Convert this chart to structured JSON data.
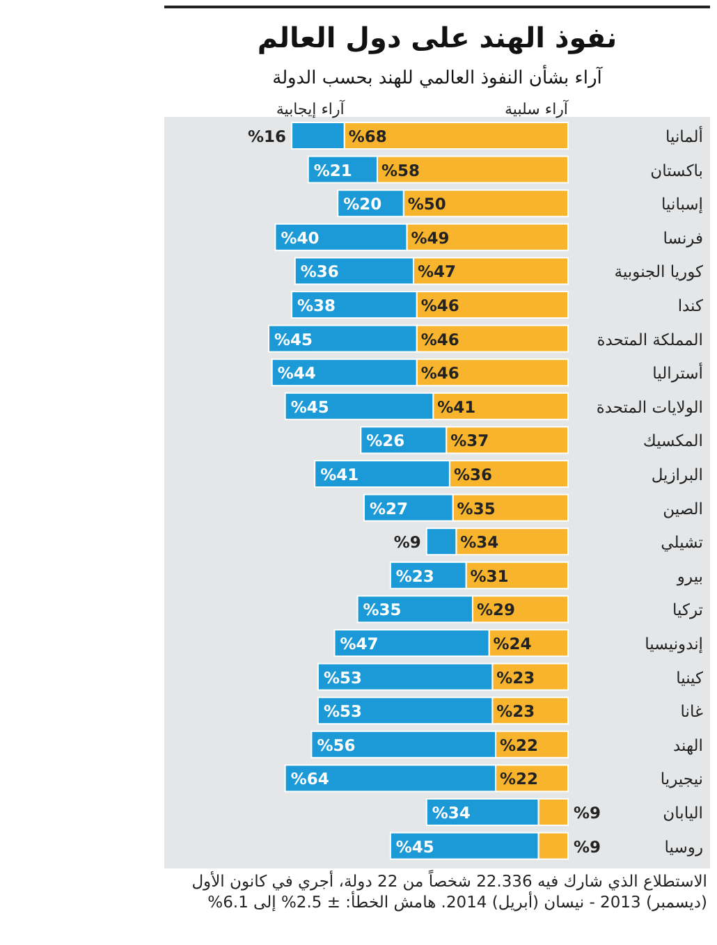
{
  "chart_data": {
    "type": "bar",
    "orientation": "horizontal",
    "stacked": true,
    "title": "نفوذ الهند على دول العالم",
    "subtitle": "آراء بشأن النفوذ العالمي للهند بحسب الدولة",
    "categories": [
      "ألمانيا",
      "باكستان",
      "إسبانيا",
      "فرنسا",
      "كوريا الجنوبية",
      "كندا",
      "المملكة المتحدة",
      "أستراليا",
      "الولايات المتحدة",
      "المكسيك",
      "البرازيل",
      "الصين",
      "تشيلي",
      "بيرو",
      "تركيا",
      "إندونيسيا",
      "كينيا",
      "غانا",
      "الهند",
      "نيجيريا",
      "اليابان",
      "روسيا"
    ],
    "series": [
      {
        "name": "آراء سلبية",
        "color": "#f7b42c",
        "values": [
          68,
          58,
          50,
          49,
          47,
          46,
          46,
          46,
          41,
          37,
          36,
          35,
          34,
          31,
          29,
          24,
          23,
          23,
          22,
          22,
          9,
          9
        ],
        "value_labels": [
          "%68",
          "%58",
          "%50",
          "%49",
          "%47",
          "%46",
          "%46",
          "%46",
          "%41",
          "%37",
          "%36",
          "%35",
          "%34",
          "%31",
          "%29",
          "%24",
          "%23",
          "%23",
          "%22",
          "%22",
          "%9",
          "%9"
        ]
      },
      {
        "name": "آراء إيجابية",
        "color": "#1b9ad7",
        "values": [
          16,
          21,
          20,
          40,
          36,
          38,
          45,
          44,
          45,
          26,
          41,
          27,
          9,
          23,
          35,
          47,
          53,
          53,
          56,
          64,
          34,
          45
        ],
        "value_labels": [
          "%16",
          "%21",
          "%20",
          "%40",
          "%36",
          "%38",
          "%45",
          "%44",
          "%45",
          "%26",
          "%41",
          "%27",
          "%9",
          "%23",
          "%35",
          "%47",
          "%53",
          "%53",
          "%56",
          "%64",
          "%34",
          "%45"
        ]
      }
    ],
    "annotations": [
      "الاستطلاع الذي شارك فيه 22.336 شخصاً من 22 دولة، أجري في كانون الأول (ديسمبر) 2013 - نيسان (أبريل) 2014. هامش الخطأ: ± 2.5% إلى 6.1%"
    ]
  }
}
